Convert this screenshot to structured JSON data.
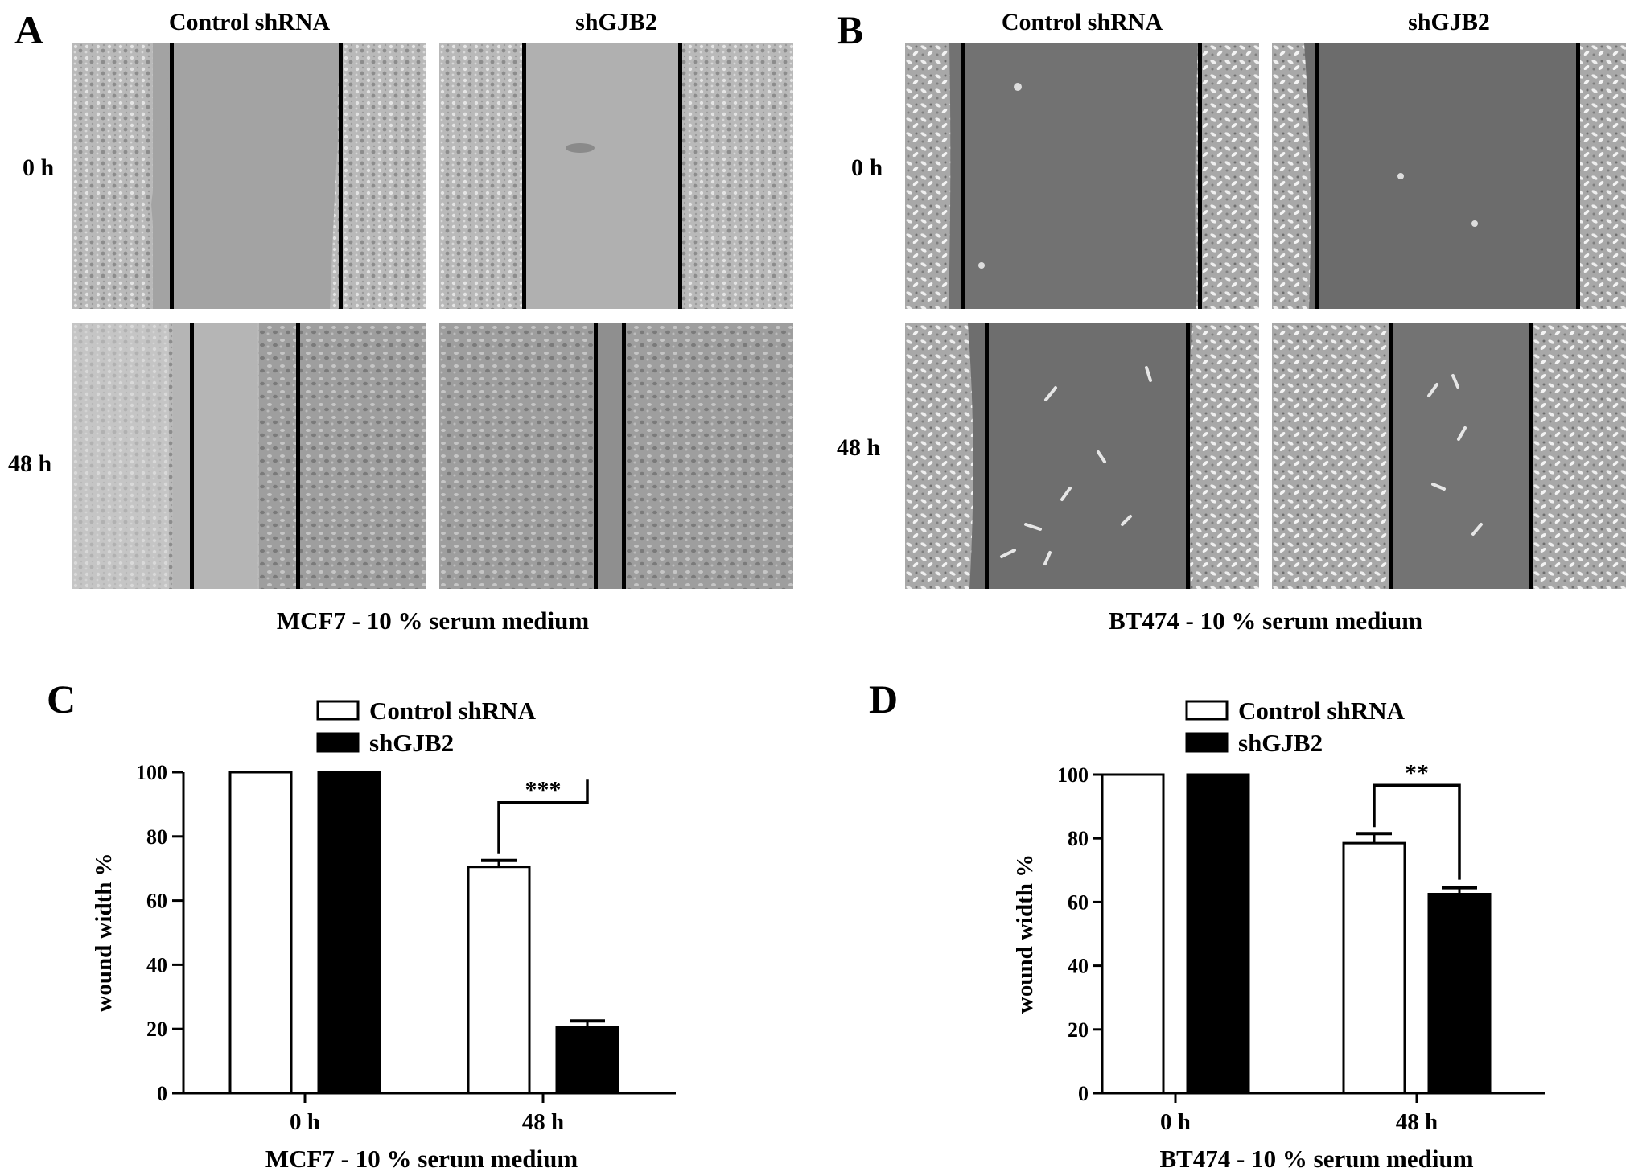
{
  "panels": {
    "A": {
      "letter": "A",
      "columns": [
        "Control  shRNA",
        "shGJB2"
      ],
      "rows": [
        "0 h",
        "48 h"
      ],
      "caption": "MCF7 - 10 %  serum medium"
    },
    "B": {
      "letter": "B",
      "columns": [
        "Control  shRNA",
        "shGJB2"
      ],
      "rows": [
        "0 h",
        "48 h"
      ],
      "caption": "BT474 - 10 %  serum medium"
    },
    "C": {
      "letter": "C"
    },
    "D": {
      "letter": "D"
    }
  },
  "chart_data": [
    {
      "type": "bar",
      "panel": "C",
      "categories": [
        "0 h",
        "48 h"
      ],
      "series": [
        {
          "name": "Control  shRNA",
          "values": [
            100,
            70.5
          ],
          "errors": [
            0,
            2.0
          ],
          "fill": "#ffffff"
        },
        {
          "name": "shGJB2",
          "values": [
            100,
            20.5
          ],
          "errors": [
            0,
            2.0
          ],
          "fill": "#000000"
        }
      ],
      "ylabel": "wound width  %",
      "xlabel": "MCF7 - 10 %  serum medium",
      "ylim": [
        0,
        100
      ],
      "yticks": [
        0,
        20,
        40,
        60,
        80,
        100
      ],
      "significance": {
        "category": "48 h",
        "label": "***"
      },
      "legend": "top"
    },
    {
      "type": "bar",
      "panel": "D",
      "categories": [
        "0 h",
        "48 h"
      ],
      "series": [
        {
          "name": "Control  shRNA",
          "values": [
            100,
            78.5
          ],
          "errors": [
            0,
            3.0
          ],
          "fill": "#ffffff"
        },
        {
          "name": "shGJB2",
          "values": [
            100,
            62.5
          ],
          "errors": [
            0,
            2.0
          ],
          "fill": "#000000"
        }
      ],
      "ylabel": "wound width  %",
      "xlabel": "BT474 - 10 %  serum medium",
      "ylim": [
        0,
        100
      ],
      "yticks": [
        0,
        20,
        40,
        60,
        80,
        100
      ],
      "significance": {
        "category": "48 h",
        "label": "**"
      },
      "legend": "top"
    }
  ],
  "colors": {
    "mcf7_gap": "#a9a9a9",
    "bt474_gap": "#707070",
    "bt474_cells": "#c8c8c8",
    "mcf7_cells": "#b2b2b2"
  }
}
